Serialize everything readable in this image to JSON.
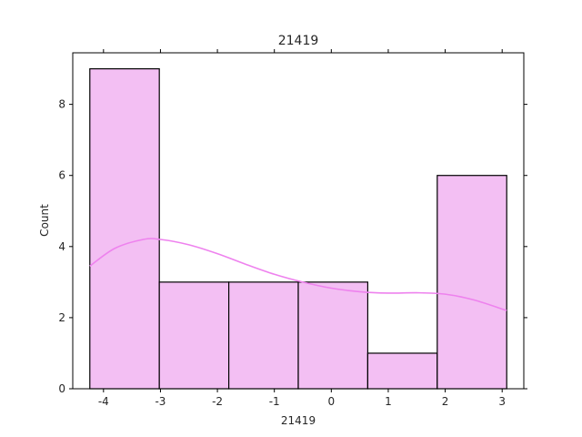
{
  "chart_data": {
    "type": "bar",
    "title": "21419",
    "xlabel": "21419",
    "ylabel": "Count",
    "bins": [
      {
        "x_start": -4.24,
        "x_end": -3.02,
        "count": 9
      },
      {
        "x_start": -3.02,
        "x_end": -1.8,
        "count": 3
      },
      {
        "x_start": -1.8,
        "x_end": -0.58,
        "count": 3
      },
      {
        "x_start": -0.58,
        "x_end": 0.64,
        "count": 3
      },
      {
        "x_start": 0.64,
        "x_end": 1.86,
        "count": 1
      },
      {
        "x_start": 1.86,
        "x_end": 3.08,
        "count": 6
      }
    ],
    "kde": {
      "x": [
        -4.24,
        -3.8,
        -3.3,
        -3.0,
        -2.5,
        -2.0,
        -1.5,
        -1.0,
        -0.5,
        0.0,
        0.5,
        1.0,
        1.5,
        2.0,
        2.5,
        3.08
      ],
      "y": [
        3.45,
        3.95,
        4.2,
        4.2,
        4.05,
        3.8,
        3.5,
        3.22,
        3.0,
        2.83,
        2.73,
        2.69,
        2.7,
        2.66,
        2.5,
        2.2
      ]
    },
    "xlim": [
      -4.54,
      3.38
    ],
    "ylim": [
      0,
      9.45
    ],
    "xticks": [
      -4,
      -3,
      -2,
      -1,
      0,
      1,
      2,
      3
    ],
    "xtick_labels": [
      "-4",
      "-3",
      "-2",
      "-1",
      "0",
      "1",
      "2",
      "3"
    ],
    "yticks": [
      0,
      2,
      4,
      6,
      8
    ],
    "ytick_labels": [
      "0",
      "2",
      "4",
      "6",
      "8"
    ],
    "grid": false,
    "colors": {
      "bar_fill": "#f3bff3",
      "bar_edge": "#000000",
      "kde_line": "#ee82ee",
      "axis": "#000000"
    }
  }
}
